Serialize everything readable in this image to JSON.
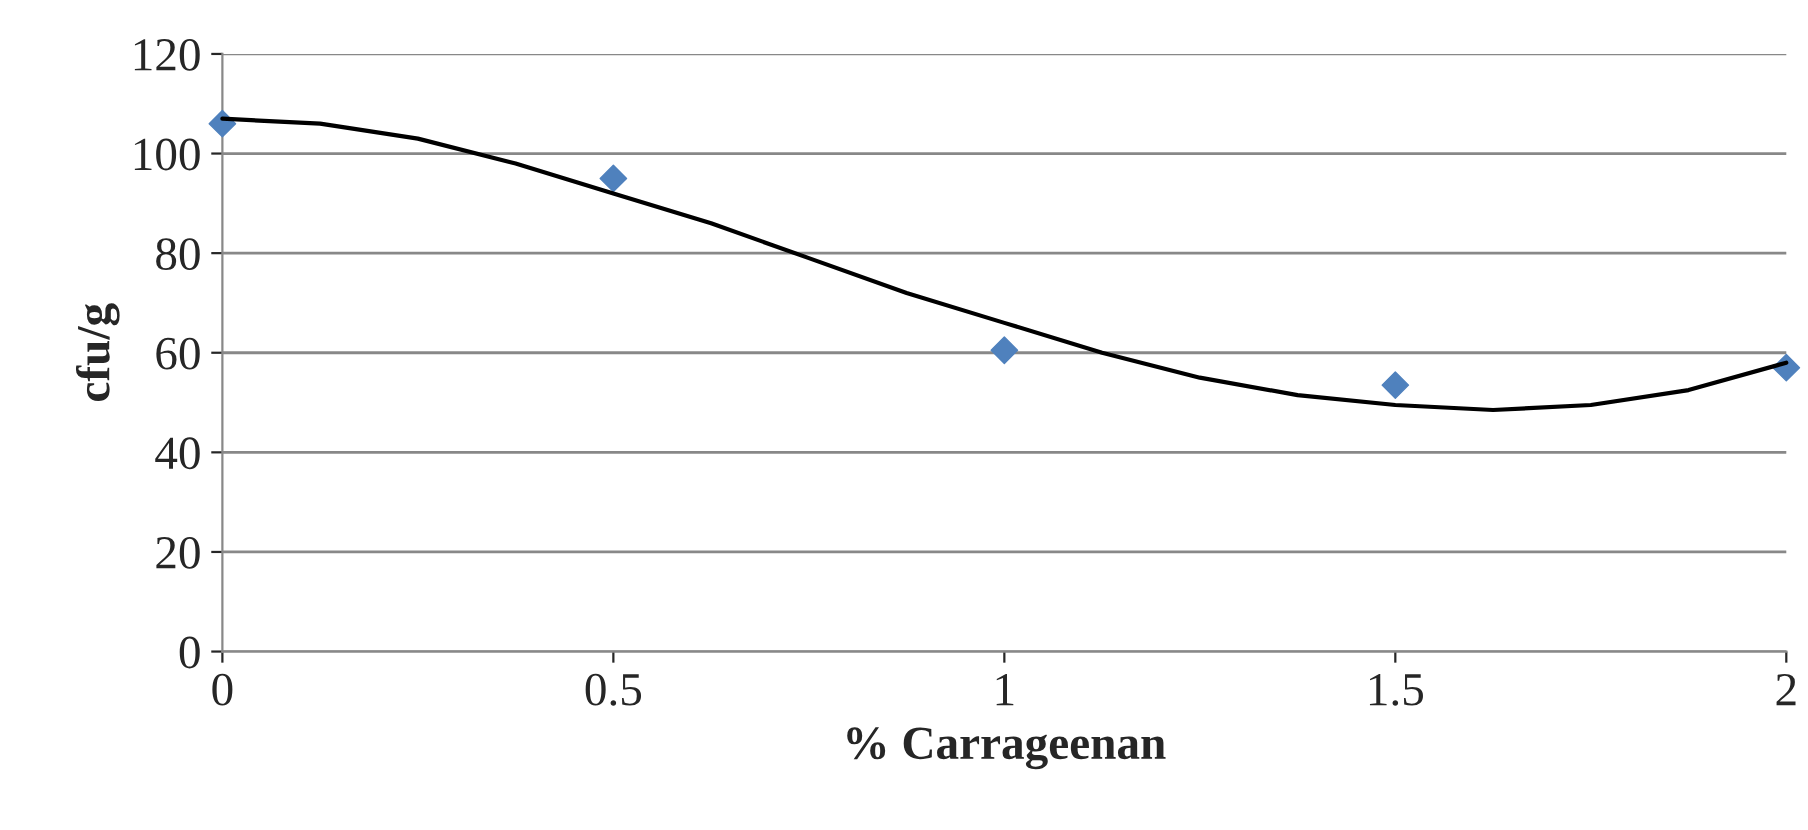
{
  "chart_data": {
    "type": "scatter",
    "xlabel": "% Carrageenan",
    "ylabel": "cfu/g",
    "xlim": [
      0,
      2
    ],
    "xticks": [
      0,
      0.5,
      1,
      1.5,
      2
    ],
    "ylim": [
      0,
      120
    ],
    "yticks": [
      0,
      20,
      40,
      60,
      80,
      100,
      120
    ],
    "grid": "y",
    "legend": false,
    "marker": "diamond",
    "series": [
      {
        "color": "#4f81bd",
        "x": [
          0,
          0.5,
          1,
          1.5,
          2
        ],
        "values": [
          106,
          95,
          60.5,
          53.5,
          57
        ]
      },
      {
        "type": "line",
        "color": "#000000",
        "marker": "none",
        "line_style": "solid",
        "x": [
          0,
          0.125,
          0.25,
          0.375,
          0.5,
          0.625,
          0.75,
          0.875,
          1,
          1.125,
          1.25,
          1.375,
          1.5,
          1.625,
          1.75,
          1.875,
          2
        ],
        "values": [
          107,
          106,
          103,
          98,
          92,
          86,
          79,
          72,
          66,
          60,
          55,
          51.5,
          49.5,
          48.5,
          49.5,
          52.5,
          58
        ]
      }
    ]
  }
}
